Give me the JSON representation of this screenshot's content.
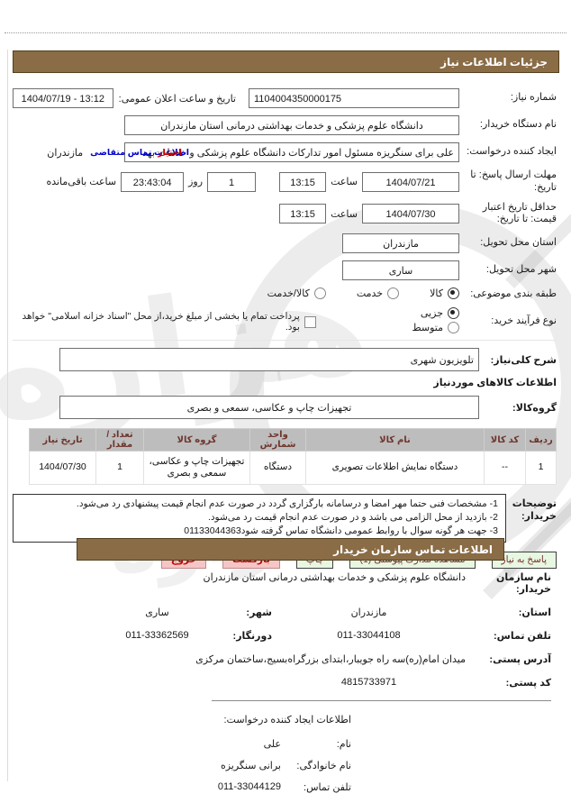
{
  "accent": {
    "bar_brown": "#8a6c46",
    "table_header_bg": "#bdbdbd",
    "table_header_text": "#6e352c",
    "btn_green_bg": "#e7f7e1",
    "btn_pink_bg": "#f6c6c6",
    "link_blue": "#0000cc",
    "link_red": "#cc0000"
  },
  "watermark_text": "هزاره",
  "section1": {
    "title": "جزئیات اطلاعات نیاز"
  },
  "form": {
    "need_number": {
      "label": "شماره نیاز:",
      "value": "1104004350000175"
    },
    "announce": {
      "label": "تاریخ و ساعت اعلان عمومی:",
      "value": "1404/07/19 - 13:12"
    },
    "buyer_device": {
      "label": "نام دستگاه خریدار:",
      "value": "دانشگاه علوم پزشکی و خدمات بهداشتی  درمانی استان مازندران"
    },
    "creator": {
      "label": "ایجاد کننده درخواست:",
      "value": "علی برای سنگریزه مسئول امور تدارکات دانشگاه علوم پزشکی و خدمات بهد",
      "overlay_blue": "اطلاعات تماس متقاضی",
      "overlay_red": "اختیار",
      "suffix": "مازندران"
    },
    "deadline": {
      "label": "مهلت ارسال پاسخ: تا تاریخ:",
      "date": "1404/07/21",
      "hour_label": "ساعت",
      "hour": "13:15",
      "days": "1",
      "days_label": "روز",
      "remaining": "23:43:04",
      "remaining_label": "ساعت باقی‌مانده"
    },
    "validity": {
      "label": "حداقل تاریخ اعتبار قیمت: تا تاریخ:",
      "date": "1404/07/30",
      "hour_label": "ساعت",
      "hour": "13:15"
    },
    "province": {
      "label": "استان محل تحویل:",
      "value": "مازندران"
    },
    "city": {
      "label": "شهر محل تحویل:",
      "value": "ساری"
    },
    "subject_class": {
      "label": "طبقه بندی موضوعی:",
      "options": [
        {
          "label": "کالا",
          "selected": true
        },
        {
          "label": "خدمت",
          "selected": false
        },
        {
          "label": "کالا/خدمت",
          "selected": false
        }
      ]
    },
    "process_type": {
      "label": "نوع فرآیند خرید:",
      "options": [
        {
          "label": "جزیی",
          "selected": true
        },
        {
          "label": "متوسط",
          "selected": false
        }
      ],
      "checkbox_checked": false,
      "checkbox_label": "پرداخت تمام یا بخشی از مبلغ خرید،از محل \"اسناد خزانه اسلامی\" خواهد بود."
    },
    "need_desc": {
      "label": "شرح کلی‌نیاز:",
      "value": "تلویزیون شهری"
    },
    "items_heading": "اطلاعات کالاهای موردنیاز",
    "goods_group": {
      "label": "گروه‌کالا:",
      "value": "تجهیزات چاپ و عکاسی، سمعی و بصری"
    }
  },
  "table": {
    "headers": [
      "ردیف",
      "کد کالا",
      "نام کالا",
      "واحد شمارش",
      "گروه کالا",
      "تعداد / مقدار",
      "تاریخ نیاز"
    ],
    "rows": [
      [
        "1",
        "--",
        "دستگاه نمایش اطلاعات تصویری",
        "دستگاه",
        "تجهیزات چاپ و عکاسی، سمعی و بصری",
        "1",
        "1404/07/30"
      ]
    ]
  },
  "notes": {
    "label": "توضیحات خریدار:",
    "lines": [
      "1- مشخصات فنی حتما مهر  امضا و درسامانه  بارگزاری گردد در  صورت عدم انجام قیمت  پیشنهادی رد می‌شود.",
      "2- بازدید از محل الزامی می باشد و در  صورت عدم انجام قیمت رد می‌شود.",
      "3- جهت هر گونه سوال با روابط عمومی  دانشگاه تماس گرفته شود01133044363"
    ]
  },
  "buttons": [
    {
      "label": "پاسخ به نیاز",
      "style": "green",
      "name": "respond-to-need-button"
    },
    {
      "label": "مشاهده مدارک پیوستی (1)",
      "style": "green",
      "name": "view-attachments-button"
    },
    {
      "label": "چاپ",
      "style": "green",
      "name": "print-button"
    },
    {
      "label": "بازگشت",
      "style": "pink",
      "name": "back-button"
    },
    {
      "label": "خروج",
      "style": "pink",
      "name": "exit-button"
    }
  ],
  "section2": {
    "title": "اطلاعات تماس سازمان خریدار"
  },
  "contact": {
    "org": {
      "label": "نام سازمان خریدار:",
      "value": "دانشگاه علوم پزشکی و خدمات بهداشتی  درمانی استان مازندران"
    },
    "province": {
      "label": "استان:",
      "value": "مازندران"
    },
    "city": {
      "label": "شهر:",
      "value": "ساری"
    },
    "phone": {
      "label": "تلفن تماس:",
      "value": "011-33044108"
    },
    "fax": {
      "label": "دورنگار:",
      "value": "011-33362569"
    },
    "address": {
      "label": "آدرس پستی:",
      "value": "میدان امام(ره)سه راه جویبار،ابتدای بزرگراه‌بسیج،ساختمان مرکزی"
    },
    "postal": {
      "label": "کد پستی:",
      "value": "4815733971"
    }
  },
  "creator_info": {
    "heading": "اطلاعات ایجاد کننده درخواست:",
    "name": {
      "label": "نام:",
      "value": "علی"
    },
    "family": {
      "label": "نام خانوادگی:",
      "value": "برانی سنگریزه"
    },
    "phone": {
      "label": "تلفن تماس:",
      "value": "011-33044129"
    }
  }
}
